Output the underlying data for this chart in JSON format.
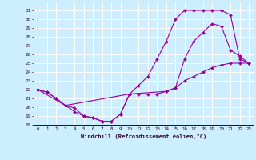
{
  "bg_color": "#cceeff",
  "line_color": "#990099",
  "grid_color": "#ffffff",
  "xlim": [
    -0.5,
    23.5
  ],
  "ylim": [
    18,
    32
  ],
  "xticks": [
    0,
    1,
    2,
    3,
    4,
    5,
    6,
    7,
    8,
    9,
    10,
    11,
    12,
    13,
    14,
    15,
    16,
    17,
    18,
    19,
    20,
    21,
    22,
    23
  ],
  "yticks": [
    18,
    19,
    20,
    21,
    22,
    23,
    24,
    25,
    26,
    27,
    28,
    29,
    30,
    31
  ],
  "xlabel": "Windchill (Refroidissement éolien,°C)",
  "line1_x": [
    0,
    1,
    2,
    3,
    4,
    5,
    6,
    7,
    8,
    9,
    10,
    11,
    12,
    13,
    14,
    15,
    16,
    17,
    18,
    19,
    20,
    21,
    22,
    23
  ],
  "line1_y": [
    22.0,
    21.7,
    21.0,
    20.2,
    19.5,
    19.0,
    18.8,
    18.4,
    18.4,
    19.2,
    21.5,
    21.5,
    21.5,
    21.5,
    21.8,
    22.2,
    23.0,
    23.5,
    24.0,
    24.5,
    24.8,
    25.0,
    25.0,
    25.0
  ],
  "line2_x": [
    0,
    1,
    2,
    3,
    4,
    5,
    6,
    7,
    8,
    9,
    10,
    11,
    12,
    13,
    14,
    15,
    16,
    17,
    18,
    19,
    20,
    21,
    22,
    23
  ],
  "line2_y": [
    22.0,
    21.7,
    21.0,
    20.2,
    19.9,
    19.0,
    18.8,
    18.4,
    18.4,
    19.2,
    21.5,
    22.5,
    23.5,
    25.5,
    27.5,
    30.0,
    31.0,
    31.0,
    31.0,
    31.0,
    31.0,
    30.5,
    25.5,
    25.0
  ],
  "line3_x": [
    0,
    3,
    10,
    14,
    15,
    16,
    17,
    18,
    19,
    20,
    21,
    22,
    23
  ],
  "line3_y": [
    22.0,
    20.2,
    21.5,
    21.8,
    22.2,
    25.5,
    27.5,
    28.5,
    29.5,
    29.2,
    26.5,
    25.8,
    25.0
  ]
}
